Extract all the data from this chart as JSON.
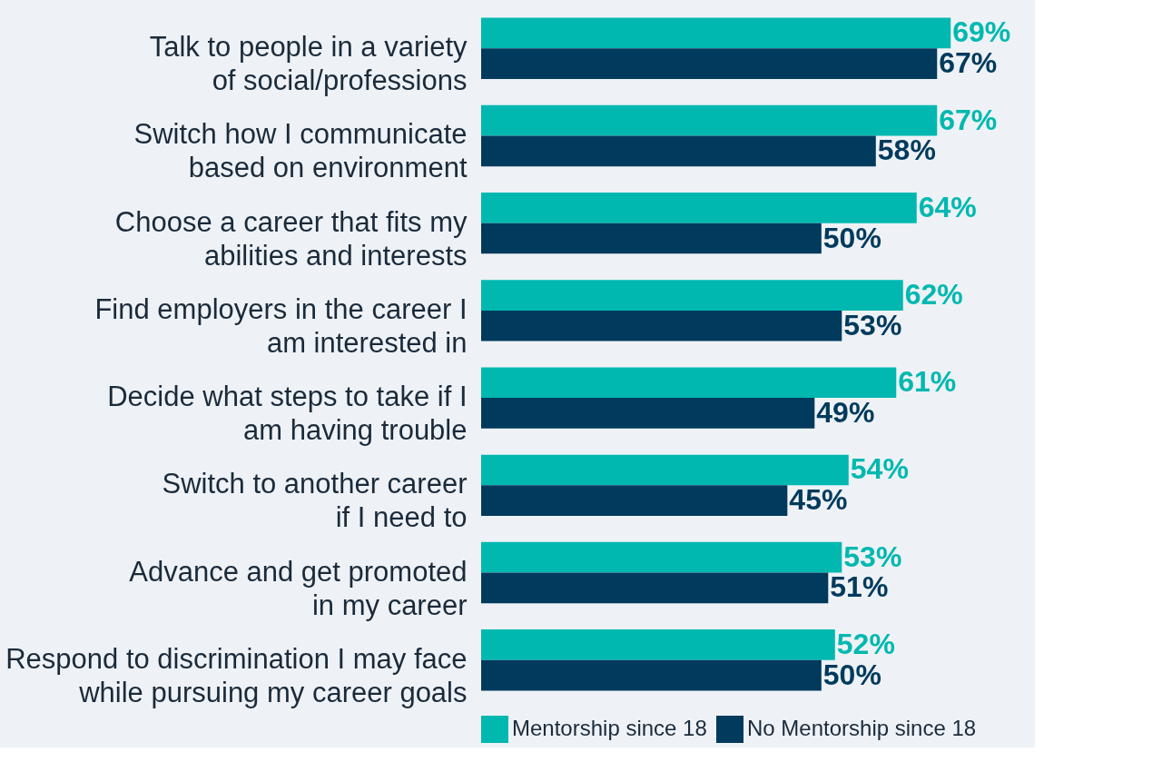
{
  "chart_data": {
    "type": "bar",
    "orientation": "horizontal",
    "categories": [
      "Talk to people in a variety\nof social/professions",
      "Switch how I communicate\nbased on environment",
      "Choose a career that fits my\nabilities and interests",
      "Find employers in the career I\nam interested in",
      "Decide what steps to take if I\nam having trouble",
      "Switch to another career\nif I need to",
      "Advance and get promoted\nin my career",
      "Respond to discrimination I may face\nwhile pursuing my career goals"
    ],
    "series": [
      {
        "name": "Mentorship since 18",
        "color": "#00b8b0",
        "values": [
          69,
          67,
          64,
          62,
          61,
          54,
          53,
          52
        ],
        "value_labels": [
          "69%",
          "67%",
          "64%",
          "62%",
          "61%",
          "54%",
          "53%",
          "52%"
        ]
      },
      {
        "name": "No Mentorship since 18",
        "color": "#003a5d",
        "values": [
          67,
          58,
          50,
          53,
          49,
          45,
          51,
          50
        ],
        "value_labels": [
          "67%",
          "58%",
          "50%",
          "53%",
          "49%",
          "45%",
          "51%",
          "50%"
        ]
      }
    ],
    "legend": "bottom",
    "grid": false
  }
}
